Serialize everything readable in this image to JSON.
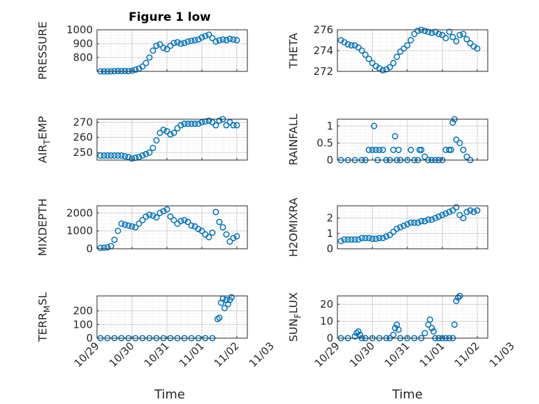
{
  "title": "Figure 1 low",
  "x_tick_labels": [
    "10/29",
    "10/30",
    "10/31",
    "11/01",
    "11/02",
    "11/03"
  ],
  "x_axis_label": "Time",
  "marker_color": "#0072BD",
  "chart_data": [
    {
      "type": "scatter",
      "ylabel": "PRESSURE",
      "ylim": [
        700,
        1000
      ],
      "yticks": [
        800,
        900,
        1000
      ],
      "xlim": [
        0,
        4.3
      ],
      "grid": true,
      "marker": "open-circle",
      "series": [
        {
          "x": [
            0.1,
            0.2,
            0.3,
            0.4,
            0.5,
            0.6,
            0.7,
            0.8,
            0.9,
            1.0,
            1.1,
            1.2,
            1.3,
            1.4,
            1.5,
            1.6,
            1.7,
            1.8,
            1.9,
            2.0,
            2.1,
            2.2,
            2.3,
            2.4,
            2.5,
            2.6,
            2.7,
            2.8,
            2.9,
            3.0,
            3.1,
            3.2,
            3.3,
            3.4,
            3.5,
            3.6,
            3.7,
            3.8,
            3.9,
            4.0
          ],
          "y": [
            700,
            700,
            700,
            700,
            701,
            702,
            702,
            703,
            702,
            705,
            712,
            720,
            735,
            760,
            800,
            850,
            885,
            895,
            870,
            860,
            885,
            905,
            910,
            900,
            905,
            915,
            920,
            925,
            930,
            945,
            955,
            965,
            940,
            915,
            925,
            930,
            925,
            935,
            930,
            925
          ]
        }
      ]
    },
    {
      "type": "scatter",
      "ylabel": "THETA",
      "ylim": [
        272,
        276
      ],
      "yticks": [
        272,
        274,
        276
      ],
      "xlim": [
        0,
        4.3
      ],
      "grid": true,
      "marker": "open-circle",
      "series": [
        {
          "x": [
            0.1,
            0.2,
            0.3,
            0.4,
            0.5,
            0.6,
            0.7,
            0.8,
            0.9,
            1.0,
            1.1,
            1.2,
            1.3,
            1.4,
            1.5,
            1.6,
            1.7,
            1.8,
            1.9,
            2.0,
            2.1,
            2.2,
            2.3,
            2.4,
            2.5,
            2.6,
            2.7,
            2.8,
            2.9,
            3.0,
            3.1,
            3.2,
            3.3,
            3.4,
            3.5,
            3.6,
            3.7,
            3.8,
            3.9,
            4.0
          ],
          "y": [
            275.0,
            274.8,
            274.6,
            274.5,
            274.5,
            274.3,
            274.0,
            273.6,
            273.2,
            272.8,
            272.5,
            272.3,
            272.1,
            272.2,
            272.4,
            272.8,
            273.4,
            273.9,
            274.2,
            274.5,
            275.0,
            275.6,
            275.9,
            276.0,
            275.9,
            275.8,
            275.7,
            275.8,
            275.6,
            275.5,
            275.2,
            275.8,
            275.3,
            274.9,
            275.5,
            275.6,
            275.1,
            274.7,
            274.4,
            274.2
          ]
        }
      ]
    },
    {
      "type": "scatter",
      "ylabel": "AIR_T EMP",
      "ylim": [
        245,
        272
      ],
      "yticks": [
        250,
        260,
        270
      ],
      "xlim": [
        0,
        4.3
      ],
      "grid": true,
      "marker": "open-circle",
      "series": [
        {
          "x": [
            0.1,
            0.2,
            0.3,
            0.4,
            0.5,
            0.6,
            0.7,
            0.8,
            0.9,
            1.0,
            1.1,
            1.2,
            1.3,
            1.4,
            1.5,
            1.6,
            1.7,
            1.8,
            1.9,
            2.0,
            2.1,
            2.2,
            2.3,
            2.4,
            2.5,
            2.6,
            2.7,
            2.8,
            2.9,
            3.0,
            3.1,
            3.2,
            3.3,
            3.4,
            3.5,
            3.6,
            3.7,
            3.8,
            3.9,
            4.0
          ],
          "y": [
            248,
            248,
            248,
            248,
            248,
            248,
            248,
            247.5,
            247,
            246,
            246.5,
            247,
            248,
            249,
            250,
            253,
            258,
            263,
            265,
            264,
            262,
            263,
            266,
            268,
            269,
            269,
            269,
            269,
            269,
            270,
            270.5,
            271,
            270,
            268,
            271,
            272,
            268,
            270,
            268,
            268
          ]
        }
      ]
    },
    {
      "type": "scatter",
      "ylabel": "RAINFALL",
      "ylim": [
        0,
        1.2
      ],
      "yticks": [
        0,
        0.5,
        1
      ],
      "xlim": [
        0,
        4.3
      ],
      "grid": true,
      "marker": "open-circle",
      "series": [
        {
          "x": [
            0.1,
            0.3,
            0.5,
            0.7,
            0.8,
            0.9,
            1.0,
            1.05,
            1.1,
            1.15,
            1.2,
            1.3,
            1.4,
            1.5,
            1.6,
            1.65,
            1.7,
            1.75,
            1.8,
            2.0,
            2.1,
            2.2,
            2.3,
            2.35,
            2.4,
            2.5,
            2.6,
            2.7,
            2.8,
            2.9,
            3.0,
            3.1,
            3.2,
            3.25,
            3.3,
            3.35,
            3.4,
            3.5,
            3.6,
            3.7,
            3.8
          ],
          "y": [
            0,
            0,
            0,
            0,
            0,
            0.3,
            0.3,
            1.0,
            0.3,
            0,
            0.3,
            0.3,
            0,
            0,
            0.3,
            0.7,
            0,
            0.3,
            0,
            0,
            0.3,
            0,
            0,
            0.3,
            0.3,
            0.1,
            0,
            0,
            0,
            0,
            0,
            0.3,
            0.3,
            0.3,
            1.1,
            1.2,
            0.6,
            0.5,
            0.3,
            0.1,
            0
          ]
        }
      ]
    },
    {
      "type": "scatter",
      "ylabel": "MIXDEPTH",
      "ylim": [
        0,
        2400
      ],
      "yticks": [
        0,
        1000,
        2000
      ],
      "xlim": [
        0,
        4.3
      ],
      "grid": true,
      "marker": "open-circle",
      "series": [
        {
          "x": [
            0.1,
            0.2,
            0.3,
            0.4,
            0.5,
            0.6,
            0.7,
            0.8,
            0.9,
            1.0,
            1.1,
            1.2,
            1.3,
            1.4,
            1.5,
            1.6,
            1.7,
            1.8,
            1.9,
            2.0,
            2.1,
            2.2,
            2.3,
            2.4,
            2.5,
            2.6,
            2.7,
            2.8,
            2.9,
            3.0,
            3.1,
            3.2,
            3.3,
            3.4,
            3.5,
            3.6,
            3.7,
            3.8,
            3.9,
            4.0
          ],
          "y": [
            50,
            60,
            80,
            150,
            500,
            1000,
            1400,
            1350,
            1300,
            1250,
            1200,
            1400,
            1600,
            1800,
            1900,
            1850,
            1750,
            2000,
            2100,
            2200,
            1800,
            1600,
            1400,
            1550,
            1600,
            1500,
            1300,
            1250,
            1100,
            1000,
            800,
            650,
            900,
            2050,
            1500,
            1200,
            800,
            400,
            600,
            700
          ]
        }
      ]
    },
    {
      "type": "scatter",
      "ylabel": "H2OMIXRA",
      "ylim": [
        0,
        2.8
      ],
      "yticks": [
        0,
        1,
        2
      ],
      "xlim": [
        0,
        4.3
      ],
      "grid": true,
      "marker": "open-circle",
      "series": [
        {
          "x": [
            0.1,
            0.2,
            0.3,
            0.4,
            0.5,
            0.6,
            0.7,
            0.8,
            0.9,
            1.0,
            1.1,
            1.2,
            1.3,
            1.4,
            1.5,
            1.6,
            1.7,
            1.8,
            1.9,
            2.0,
            2.1,
            2.2,
            2.3,
            2.4,
            2.5,
            2.6,
            2.7,
            2.8,
            2.9,
            3.0,
            3.1,
            3.2,
            3.3,
            3.4,
            3.5,
            3.6,
            3.7,
            3.8,
            3.9,
            4.0
          ],
          "y": [
            0.5,
            0.6,
            0.6,
            0.6,
            0.6,
            0.6,
            0.7,
            0.7,
            0.7,
            0.65,
            0.65,
            0.7,
            0.7,
            0.8,
            0.9,
            1.1,
            1.3,
            1.4,
            1.5,
            1.6,
            1.7,
            1.7,
            1.7,
            1.8,
            1.8,
            1.9,
            1.9,
            2.0,
            2.1,
            2.2,
            2.3,
            2.4,
            2.5,
            2.7,
            2.2,
            2.0,
            2.4,
            2.5,
            2.4,
            2.5
          ]
        }
      ]
    },
    {
      "type": "scatter",
      "ylabel": "TERR_M SL",
      "ylim": [
        0,
        310
      ],
      "yticks": [
        0,
        100,
        200
      ],
      "xlim": [
        0,
        4.3
      ],
      "grid": true,
      "marker": "open-circle",
      "series": [
        {
          "x": [
            0.1,
            0.3,
            0.5,
            0.7,
            0.9,
            1.1,
            1.3,
            1.5,
            1.7,
            1.9,
            2.1,
            2.3,
            2.5,
            2.7,
            2.9,
            3.1,
            3.3,
            3.45,
            3.5,
            3.55,
            3.6,
            3.65,
            3.7,
            3.75,
            3.8,
            3.85
          ],
          "y": [
            0,
            0,
            0,
            0,
            0,
            0,
            0,
            0,
            0,
            0,
            0,
            0,
            0,
            0,
            0,
            0,
            0,
            140,
            150,
            260,
            290,
            220,
            280,
            250,
            280,
            300
          ]
        }
      ]
    },
    {
      "type": "scatter",
      "ylabel": "SUN_F LUX",
      "ylim": [
        0,
        25
      ],
      "yticks": [
        0,
        10,
        20
      ],
      "xlim": [
        0,
        4.3
      ],
      "grid": true,
      "marker": "open-circle",
      "series": [
        {
          "x": [
            0.1,
            0.3,
            0.5,
            0.55,
            0.6,
            0.65,
            0.7,
            0.8,
            1.0,
            1.2,
            1.4,
            1.5,
            1.6,
            1.65,
            1.7,
            1.75,
            1.8,
            2.0,
            2.2,
            2.4,
            2.5,
            2.6,
            2.65,
            2.7,
            2.75,
            2.8,
            2.9,
            3.0,
            3.1,
            3.2,
            3.3,
            3.35,
            3.4,
            3.45,
            3.5
          ],
          "y": [
            0,
            0,
            1,
            3,
            4,
            2,
            0,
            0,
            0,
            0,
            0,
            0,
            2,
            6,
            8,
            5,
            0,
            0,
            0,
            0,
            3,
            8,
            11,
            6,
            4,
            0,
            0,
            0,
            0,
            0,
            0,
            8,
            22,
            24,
            25
          ]
        }
      ]
    }
  ]
}
